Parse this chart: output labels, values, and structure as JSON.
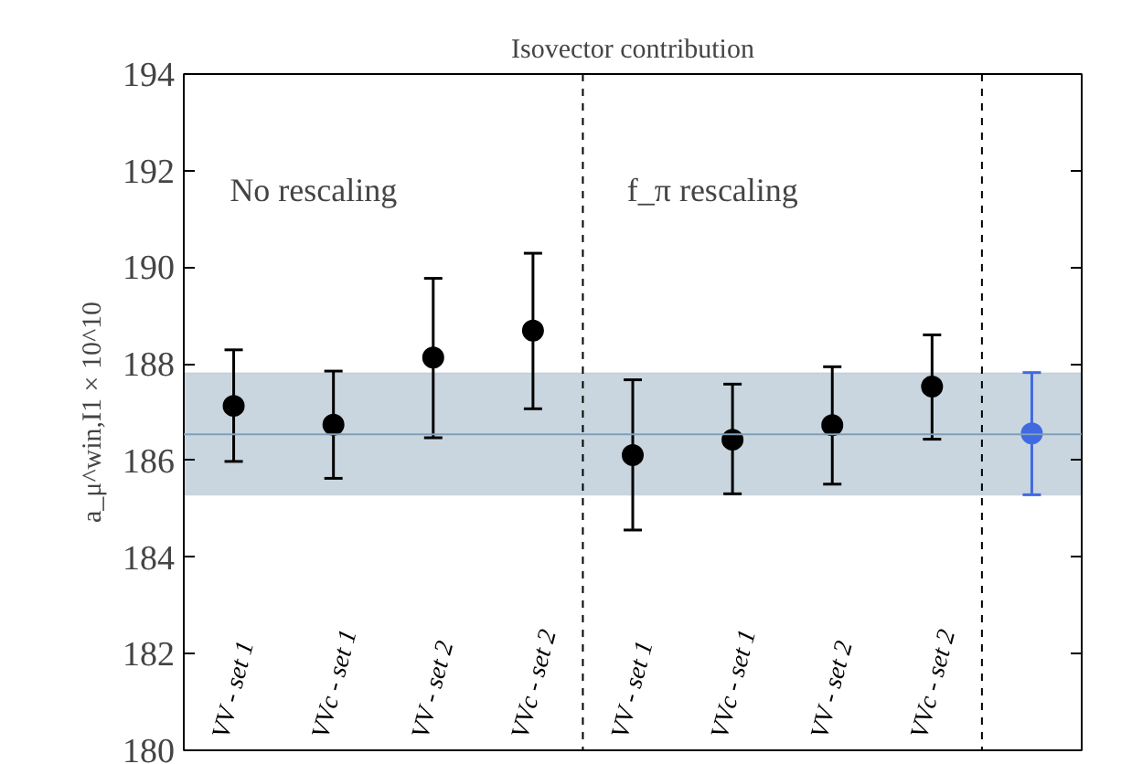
{
  "chart_data": {
    "type": "scatter",
    "title": "Isovector contribution",
    "ylabel": "a_μ^win,I1 × 10^10",
    "categories": [
      "VV - set 1",
      "VVc - set 1",
      "VV - set 2",
      "VVc - set 2",
      "VV - set 1",
      "VVc - set 1",
      "VV - set 2",
      "VVc - set 2",
      null
    ],
    "values": [
      187.13,
      186.74,
      188.13,
      188.69,
      186.11,
      186.43,
      186.73,
      187.53,
      186.56
    ],
    "errors": [
      [
        185.98,
        188.29
      ],
      [
        185.63,
        187.85
      ],
      [
        186.47,
        189.77
      ],
      [
        187.07,
        190.29
      ],
      [
        184.56,
        187.67
      ],
      [
        185.31,
        187.58
      ],
      [
        185.51,
        187.94
      ],
      [
        186.44,
        188.6
      ],
      [
        185.29,
        187.82
      ]
    ],
    "colors": [
      "#000000",
      "#000000",
      "#000000",
      "#000000",
      "#000000",
      "#000000",
      "#000000",
      "#000000",
      "#4169e1"
    ],
    "marker": "circle",
    "ylim": [
      180,
      194
    ],
    "yticks": [
      180,
      182,
      184,
      186,
      188,
      190,
      192,
      194
    ],
    "grid": false,
    "bands": [
      {
        "axis": "y",
        "from": 185.29,
        "to": 187.81,
        "color": "#c9d6df"
      }
    ],
    "ref_lines": [
      {
        "axis": "y",
        "value": 186.54,
        "color": "#7f9fba",
        "line_style": "solid"
      }
    ],
    "annotations": [
      "No rescaling",
      "f_π rescaling"
    ]
  }
}
